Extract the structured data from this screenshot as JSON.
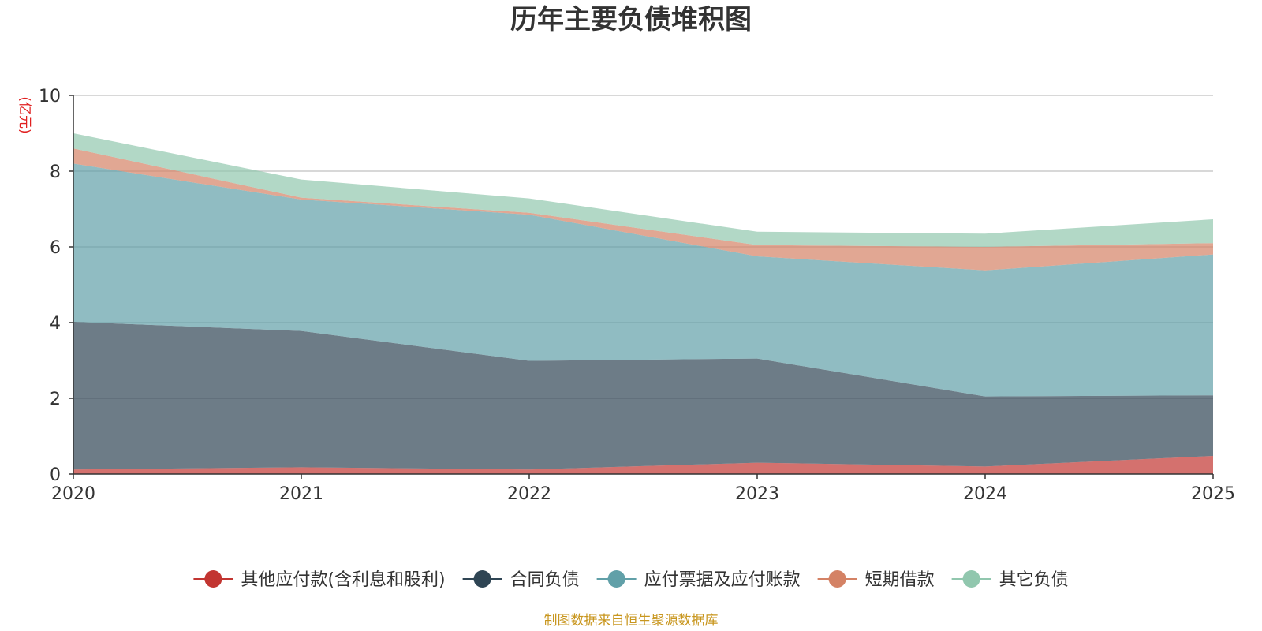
{
  "chart_data": {
    "type": "area",
    "stacked": true,
    "title": "历年主要负债堆积图",
    "unit": "(亿元)",
    "source": "制图数据来自恒生聚源数据库",
    "x": [
      "2020",
      "2021",
      "2022",
      "2023",
      "2024",
      "2025"
    ],
    "ylim": [
      0,
      10
    ],
    "yticks": [
      0,
      2,
      4,
      6,
      8,
      10
    ],
    "grid": true,
    "legend_position": "bottom",
    "series": [
      {
        "name": "其他应付款(含利息和股利)",
        "color": "#c23531",
        "values": [
          0.12,
          0.18,
          0.12,
          0.3,
          0.2,
          0.48
        ]
      },
      {
        "name": "合同负债",
        "color": "#2f4554",
        "values": [
          3.9,
          3.6,
          2.87,
          2.75,
          1.85,
          1.6
        ]
      },
      {
        "name": "应付票据及应付账款",
        "color": "#61a0a8",
        "values": [
          4.18,
          3.47,
          3.86,
          2.7,
          3.33,
          3.72
        ]
      },
      {
        "name": "短期借款",
        "color": "#d48265",
        "values": [
          0.4,
          0.05,
          0.05,
          0.3,
          0.62,
          0.3
        ]
      },
      {
        "name": "其它负债",
        "color": "#91c7ae",
        "values": [
          0.4,
          0.48,
          0.38,
          0.35,
          0.35,
          0.63
        ]
      }
    ]
  }
}
